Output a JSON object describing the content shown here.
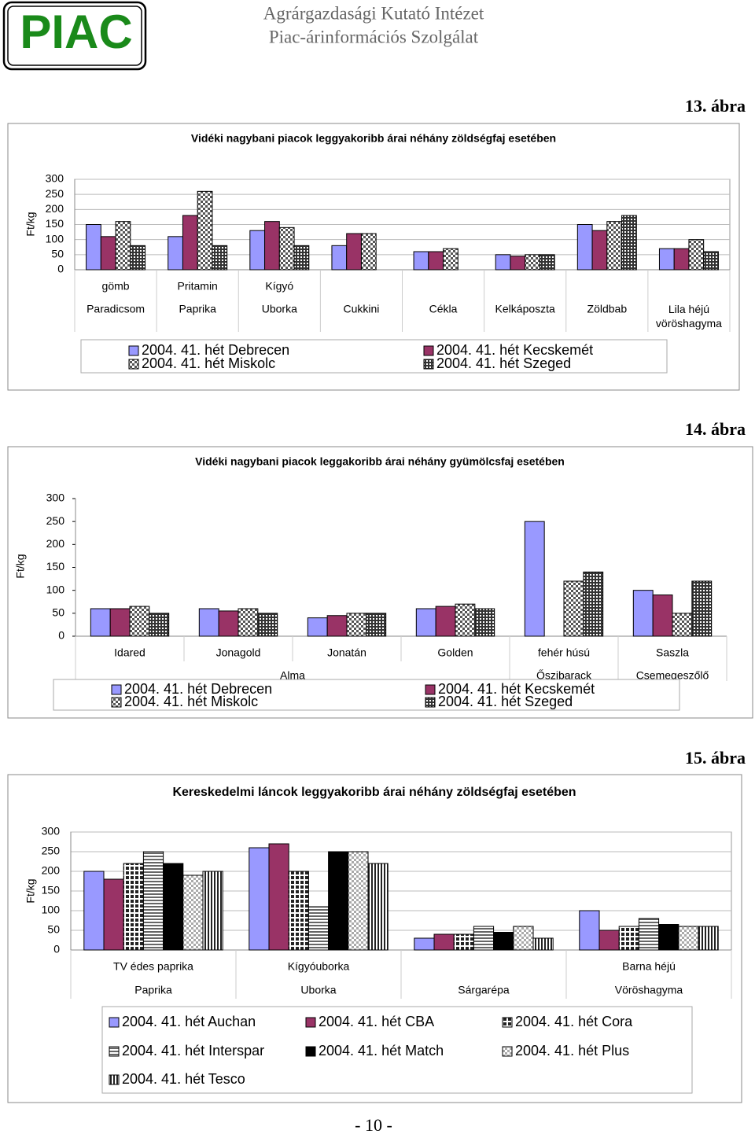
{
  "header": {
    "logo": "PIAC",
    "institute": "Agrárgazdasági Kutató Intézet",
    "service": "Piac-árinformációs Szolgálat"
  },
  "figures": [
    "13. ábra",
    "14. ábra",
    "15. ábra"
  ],
  "chart_data": [
    {
      "type": "bar",
      "title": "Vidéki nagybani piacok leggyakoribb árai néhány zöldségfaj esetében",
      "y_label": "Ft/kg",
      "categories": [
        "gömb",
        "Pritamin",
        "Kígyó",
        null,
        null,
        null,
        null,
        null
      ],
      "groups": [
        "Paradicsom",
        "Paprika",
        "Uborka",
        "Cukkini",
        "Cékla",
        "Kelkáposzta",
        "Zöldbab",
        "Lila héjú vöröshagyma"
      ],
      "ylim": [
        0,
        300
      ],
      "yticks": [
        0,
        50,
        100,
        150,
        200,
        250,
        300
      ],
      "grid": true,
      "series": [
        {
          "name": "2004. 41. hét Debrecen",
          "color": "#9999ff",
          "values": [
            150,
            110,
            130,
            80,
            60,
            50,
            150,
            70
          ]
        },
        {
          "name": "2004. 41. hét Kecskemét",
          "color": "#993366",
          "values": [
            110,
            180,
            160,
            120,
            60,
            45,
            130,
            70
          ]
        },
        {
          "name": "2004. 41. hét Miskolc",
          "color": "#555555",
          "pattern": "checker",
          "values": [
            160,
            260,
            140,
            120,
            70,
            50,
            160,
            100
          ]
        },
        {
          "name": "2004. 41. hét Szeged",
          "color": "#333333",
          "pattern": "grid",
          "values": [
            80,
            80,
            80,
            null,
            null,
            50,
            180,
            60
          ]
        }
      ]
    },
    {
      "type": "bar",
      "title": "Vidéki nagybani piacok leggakoribb árai néhány gyümölcsfaj esetében",
      "y_label": "Ft/kg",
      "categories": [
        "Idared",
        "Jonagold",
        "Jonatán",
        "Golden",
        "fehér húsú",
        "Saszla"
      ],
      "groups": [
        "Alma",
        null,
        null,
        null,
        "Őszibarack",
        "Csemegeszőlő"
      ],
      "ylim": [
        0,
        300
      ],
      "yticks": [
        0,
        50,
        100,
        150,
        200,
        250,
        300
      ],
      "grid": false,
      "series": [
        {
          "name": "2004. 41. hét Debrecen",
          "color": "#9999ff",
          "values": [
            60,
            60,
            40,
            60,
            250,
            100
          ]
        },
        {
          "name": "2004. 41. hét Kecskemét",
          "color": "#993366",
          "values": [
            60,
            55,
            45,
            65,
            null,
            90
          ]
        },
        {
          "name": "2004. 41. hét Miskolc",
          "color": "#555555",
          "pattern": "checker",
          "values": [
            65,
            60,
            50,
            70,
            120,
            50
          ]
        },
        {
          "name": "2004. 41. hét Szeged",
          "color": "#333333",
          "pattern": "grid",
          "values": [
            50,
            50,
            50,
            60,
            140,
            120
          ]
        }
      ]
    },
    {
      "type": "bar",
      "title": "Kereskedelmi láncok leggyakoribb árai néhány zöldségfaj esetében",
      "y_label": "Ft/kg",
      "categories": [
        "TV édes paprika",
        "Kígyóuborka",
        null,
        "Barna héjú"
      ],
      "groups": [
        "Paprika",
        "Uborka",
        "Sárgarépa",
        "Vöröshagyma"
      ],
      "ylim": [
        0,
        300
      ],
      "yticks": [
        0,
        50,
        100,
        150,
        200,
        250,
        300
      ],
      "grid": true,
      "series": [
        {
          "name": "2004. 41. hét Auchan",
          "color": "#9999ff",
          "values": [
            200,
            260,
            30,
            100
          ]
        },
        {
          "name": "2004. 41. hét CBA",
          "color": "#993366",
          "values": [
            180,
            270,
            40,
            50
          ]
        },
        {
          "name": "2004. 41. hét Cora",
          "color": "#222222",
          "pattern": "cross",
          "values": [
            220,
            200,
            40,
            60
          ]
        },
        {
          "name": "2004. 41. hét Interspar",
          "color": "#666666",
          "pattern": "hstripe",
          "values": [
            250,
            110,
            60,
            80
          ]
        },
        {
          "name": "2004. 41. hét Match",
          "color": "#000000",
          "values": [
            220,
            250,
            45,
            65
          ]
        },
        {
          "name": "2004. 41. hét Plus",
          "color": "#999999",
          "pattern": "lightchecker",
          "values": [
            190,
            250,
            60,
            60
          ]
        },
        {
          "name": "2004. 41. hét Tesco",
          "color": "#222222",
          "pattern": "vstripe",
          "values": [
            200,
            220,
            30,
            60
          ]
        }
      ]
    }
  ],
  "footer": {
    "page": "- 10 -"
  }
}
